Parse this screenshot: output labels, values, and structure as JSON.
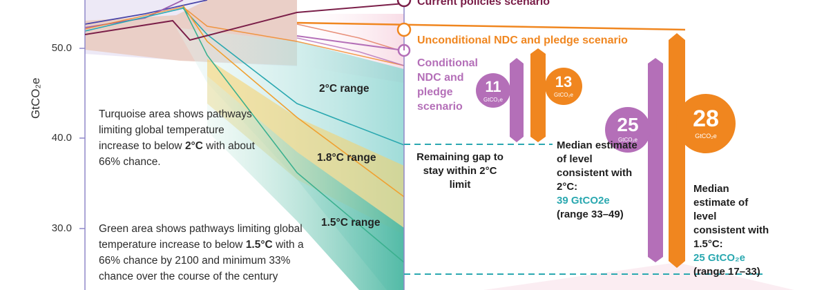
{
  "colors": {
    "current": "#7a1e48",
    "unconditional": "#f0861f",
    "conditional": "#b46fb8",
    "teal": "#2aa8b0",
    "green": "#7cc8a8",
    "yellow": "#f4c44a",
    "axis": "#8f87c8"
  },
  "chart_data": {
    "type": "line",
    "ylabel": "GtCO₂e",
    "ylim": [
      24.3,
      56.3
    ],
    "y_ticks": [
      "50.0",
      "40.0",
      "30.0"
    ],
    "series": [
      {
        "name": "Current policies scenario",
        "values": [
          51.5,
          53.2,
          55.0
        ]
      },
      {
        "name": "Unconditional NDC and pledge scenario",
        "values": [
          52.0
        ]
      },
      {
        "name": "Conditional NDC and pledge scenario",
        "values": [
          49.8
        ]
      }
    ],
    "ranges": [
      "2°C range",
      "1.8°C range",
      "1.5°C range"
    ]
  },
  "scenarios": {
    "current": "Current policies scenario",
    "unconditional": "Unconditional NDC and pledge scenario",
    "conditional": "Conditional NDC and pledge scenario"
  },
  "notes": {
    "turquoise_pre": "Turquoise area shows pathways limiting global temperature increase to below ",
    "turquoise_bold": "2°C",
    "turquoise_post": " with about 66% chance.",
    "green_pre": "Green area shows pathways limiting global temperature increase to below ",
    "green_bold": "1.5°C",
    "green_post": " with a 66% chance by 2100 and minimum 33% chance over the course of the century"
  },
  "gap_label": "Remaining gap to stay within 2°C limit",
  "bubbles": {
    "b11": {
      "value": "11",
      "unit": "GtCO₂e"
    },
    "b13": {
      "value": "13",
      "unit": "GtCO₂e"
    },
    "b25": {
      "value": "25",
      "unit": "GtCO₂e"
    },
    "b28": {
      "value": "28",
      "unit": "GtCO₂e"
    }
  },
  "median_2c": {
    "text": "Median estimate of level consistent with 2°C:",
    "value": "39 GtCO2e",
    "range": "(range 33–49)"
  },
  "median_15c": {
    "text": "Median estimate of level consistent with 1.5°C:",
    "value": "25 GtCO₂e",
    "range": "(range 17–33)"
  }
}
